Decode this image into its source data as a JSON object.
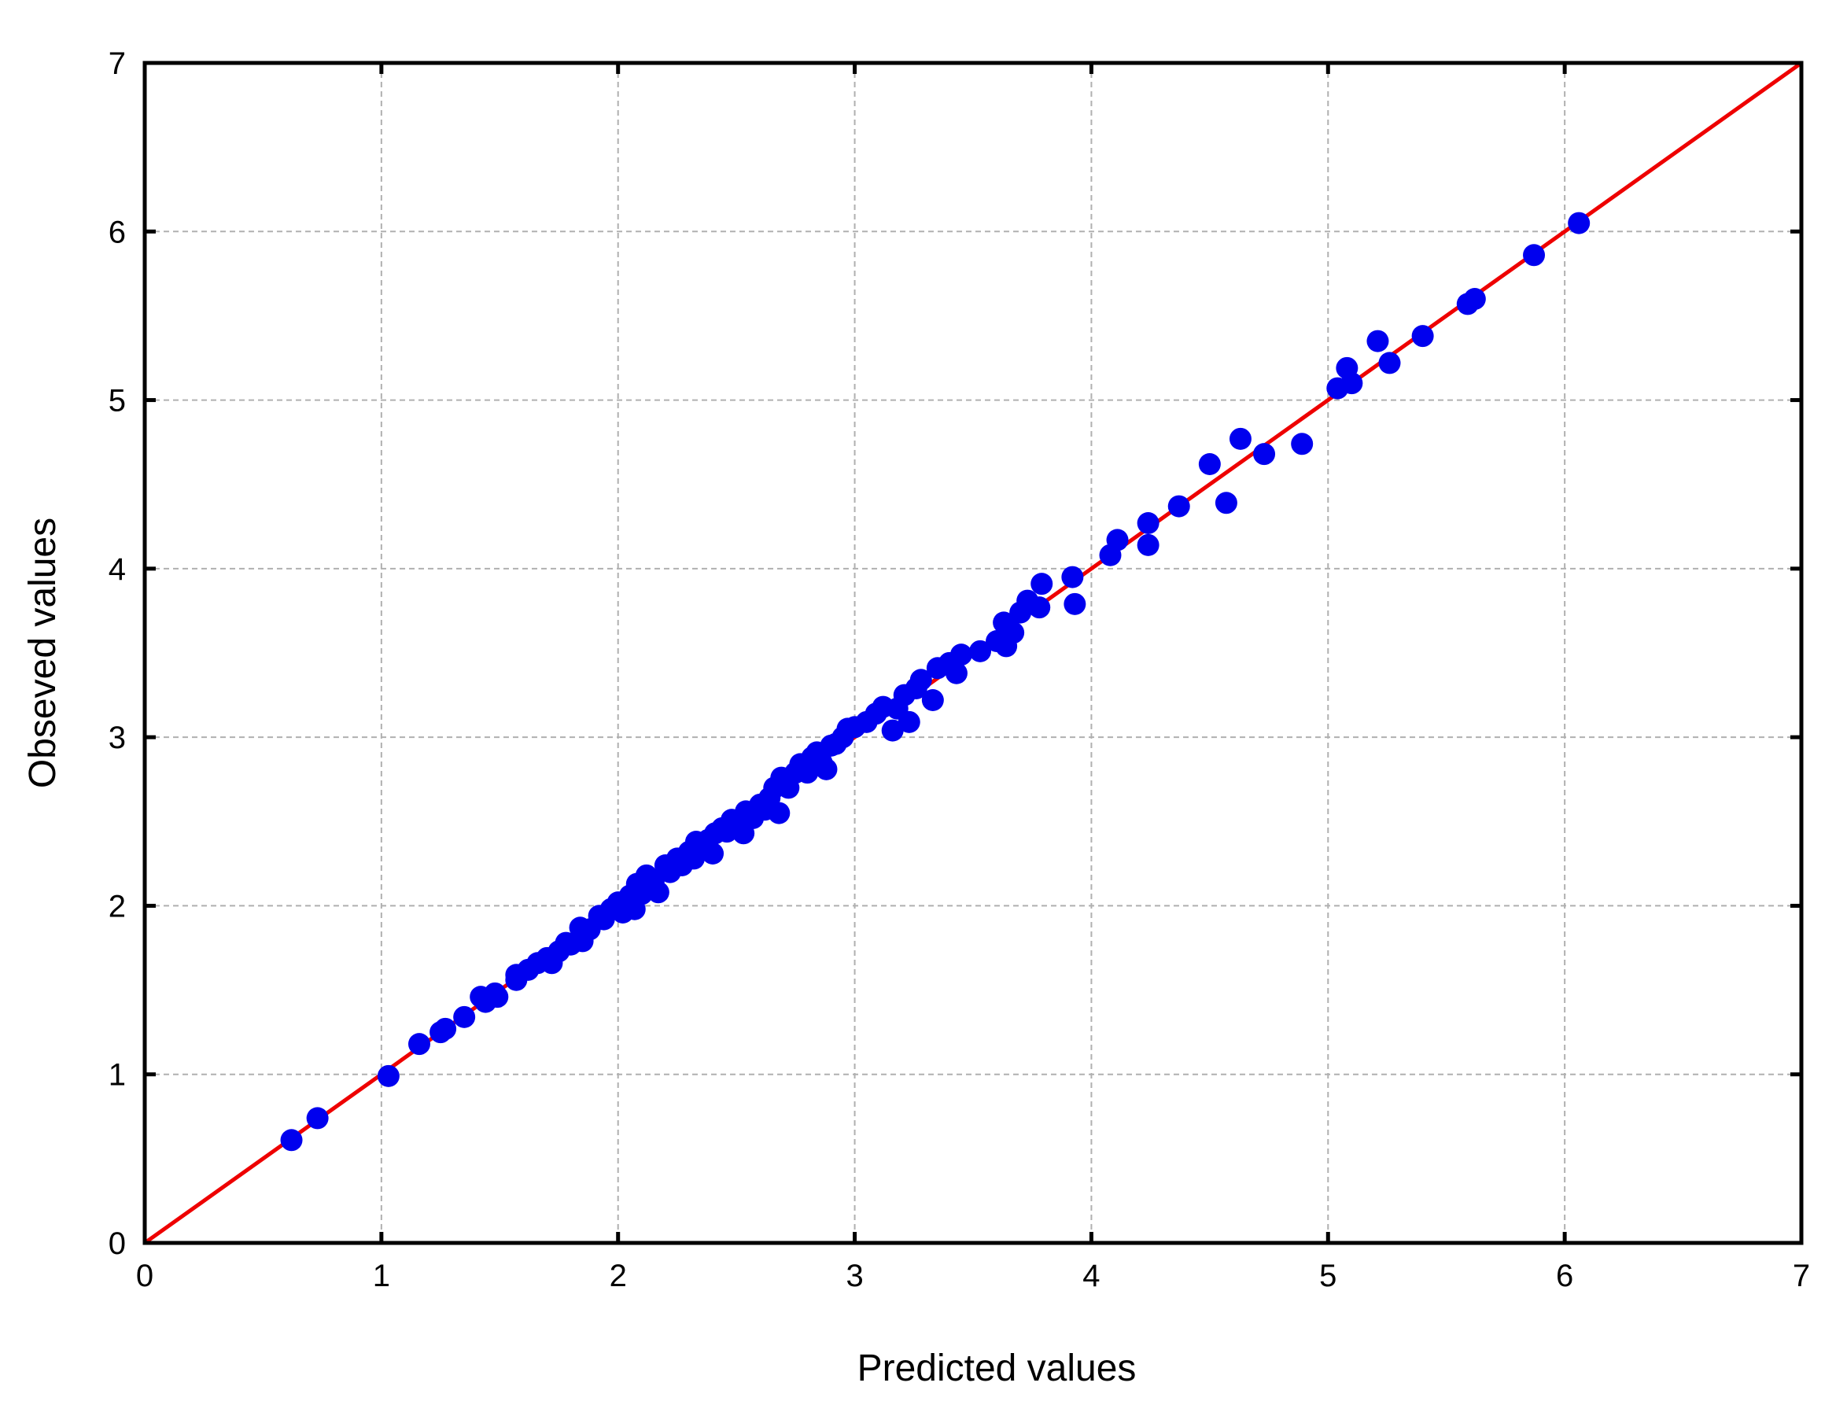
{
  "chart_data": {
    "type": "scatter",
    "xlabel": "Predicted values",
    "ylabel": "Obseved values",
    "xlim": [
      0,
      7
    ],
    "ylim": [
      0,
      7
    ],
    "xticks": [
      "0",
      "1",
      "2",
      "3",
      "4",
      "5",
      "6",
      "7"
    ],
    "yticks": [
      "0",
      "1",
      "2",
      "3",
      "4",
      "5",
      "6",
      "7"
    ],
    "grid": true,
    "point_color": "#0000ee",
    "line_color": "#ee0000",
    "reference_line": {
      "x": [
        0,
        7
      ],
      "y": [
        0,
        7
      ]
    },
    "series": [
      {
        "points": [
          [
            0.62,
            0.61
          ],
          [
            0.73,
            0.74
          ],
          [
            1.03,
            0.99
          ],
          [
            1.16,
            1.18
          ],
          [
            1.25,
            1.25
          ],
          [
            1.27,
            1.27
          ],
          [
            1.35,
            1.34
          ],
          [
            1.42,
            1.46
          ],
          [
            1.44,
            1.43
          ],
          [
            1.48,
            1.48
          ],
          [
            1.49,
            1.46
          ],
          [
            1.57,
            1.59
          ],
          [
            1.57,
            1.56
          ],
          [
            1.62,
            1.62
          ],
          [
            1.66,
            1.66
          ],
          [
            1.7,
            1.69
          ],
          [
            1.72,
            1.66
          ],
          [
            1.75,
            1.73
          ],
          [
            1.78,
            1.78
          ],
          [
            1.8,
            1.77
          ],
          [
            1.84,
            1.87
          ],
          [
            1.85,
            1.79
          ],
          [
            1.88,
            1.86
          ],
          [
            1.92,
            1.94
          ],
          [
            1.94,
            1.92
          ],
          [
            1.97,
            1.98
          ],
          [
            2.0,
            2.02
          ],
          [
            2.02,
            1.96
          ],
          [
            2.05,
            2.06
          ],
          [
            2.07,
            1.98
          ],
          [
            2.08,
            2.13
          ],
          [
            2.1,
            2.07
          ],
          [
            2.12,
            2.18
          ],
          [
            2.15,
            2.14
          ],
          [
            2.17,
            2.08
          ],
          [
            2.2,
            2.24
          ],
          [
            2.22,
            2.2
          ],
          [
            2.25,
            2.28
          ],
          [
            2.27,
            2.24
          ],
          [
            2.3,
            2.32
          ],
          [
            2.32,
            2.28
          ],
          [
            2.33,
            2.38
          ],
          [
            2.36,
            2.34
          ],
          [
            2.38,
            2.39
          ],
          [
            2.4,
            2.31
          ],
          [
            2.41,
            2.43
          ],
          [
            2.44,
            2.46
          ],
          [
            2.46,
            2.44
          ],
          [
            2.48,
            2.51
          ],
          [
            2.5,
            2.49
          ],
          [
            2.53,
            2.43
          ],
          [
            2.54,
            2.56
          ],
          [
            2.57,
            2.52
          ],
          [
            2.6,
            2.6
          ],
          [
            2.62,
            2.57
          ],
          [
            2.64,
            2.64
          ],
          [
            2.66,
            2.7
          ],
          [
            2.68,
            2.55
          ],
          [
            2.69,
            2.76
          ],
          [
            2.72,
            2.7
          ],
          [
            2.75,
            2.79
          ],
          [
            2.77,
            2.84
          ],
          [
            2.8,
            2.79
          ],
          [
            2.82,
            2.88
          ],
          [
            2.84,
            2.91
          ],
          [
            2.86,
            2.85
          ],
          [
            2.88,
            2.81
          ],
          [
            2.9,
            2.95
          ],
          [
            2.92,
            2.96
          ],
          [
            2.95,
            3.0
          ],
          [
            2.97,
            3.05
          ],
          [
            3.0,
            3.06
          ],
          [
            3.05,
            3.09
          ],
          [
            3.09,
            3.14
          ],
          [
            3.12,
            3.18
          ],
          [
            3.16,
            3.04
          ],
          [
            3.18,
            3.17
          ],
          [
            3.21,
            3.25
          ],
          [
            3.23,
            3.09
          ],
          [
            3.26,
            3.29
          ],
          [
            3.28,
            3.34
          ],
          [
            3.33,
            3.22
          ],
          [
            3.35,
            3.41
          ],
          [
            3.4,
            3.44
          ],
          [
            3.43,
            3.38
          ],
          [
            3.45,
            3.49
          ],
          [
            3.53,
            3.51
          ],
          [
            3.6,
            3.57
          ],
          [
            3.63,
            3.68
          ],
          [
            3.64,
            3.54
          ],
          [
            3.67,
            3.62
          ],
          [
            3.7,
            3.74
          ],
          [
            3.73,
            3.81
          ],
          [
            3.78,
            3.77
          ],
          [
            3.79,
            3.91
          ],
          [
            3.92,
            3.95
          ],
          [
            3.93,
            3.79
          ],
          [
            4.08,
            4.08
          ],
          [
            4.11,
            4.17
          ],
          [
            4.24,
            4.27
          ],
          [
            4.24,
            4.14
          ],
          [
            4.37,
            4.37
          ],
          [
            4.5,
            4.62
          ],
          [
            4.57,
            4.39
          ],
          [
            4.63,
            4.77
          ],
          [
            4.73,
            4.68
          ],
          [
            4.89,
            4.74
          ],
          [
            5.04,
            5.07
          ],
          [
            5.08,
            5.19
          ],
          [
            5.1,
            5.1
          ],
          [
            5.21,
            5.35
          ],
          [
            5.26,
            5.22
          ],
          [
            5.4,
            5.38
          ],
          [
            5.59,
            5.57
          ],
          [
            5.62,
            5.6
          ],
          [
            5.87,
            5.86
          ],
          [
            6.06,
            6.05
          ]
        ]
      }
    ]
  }
}
